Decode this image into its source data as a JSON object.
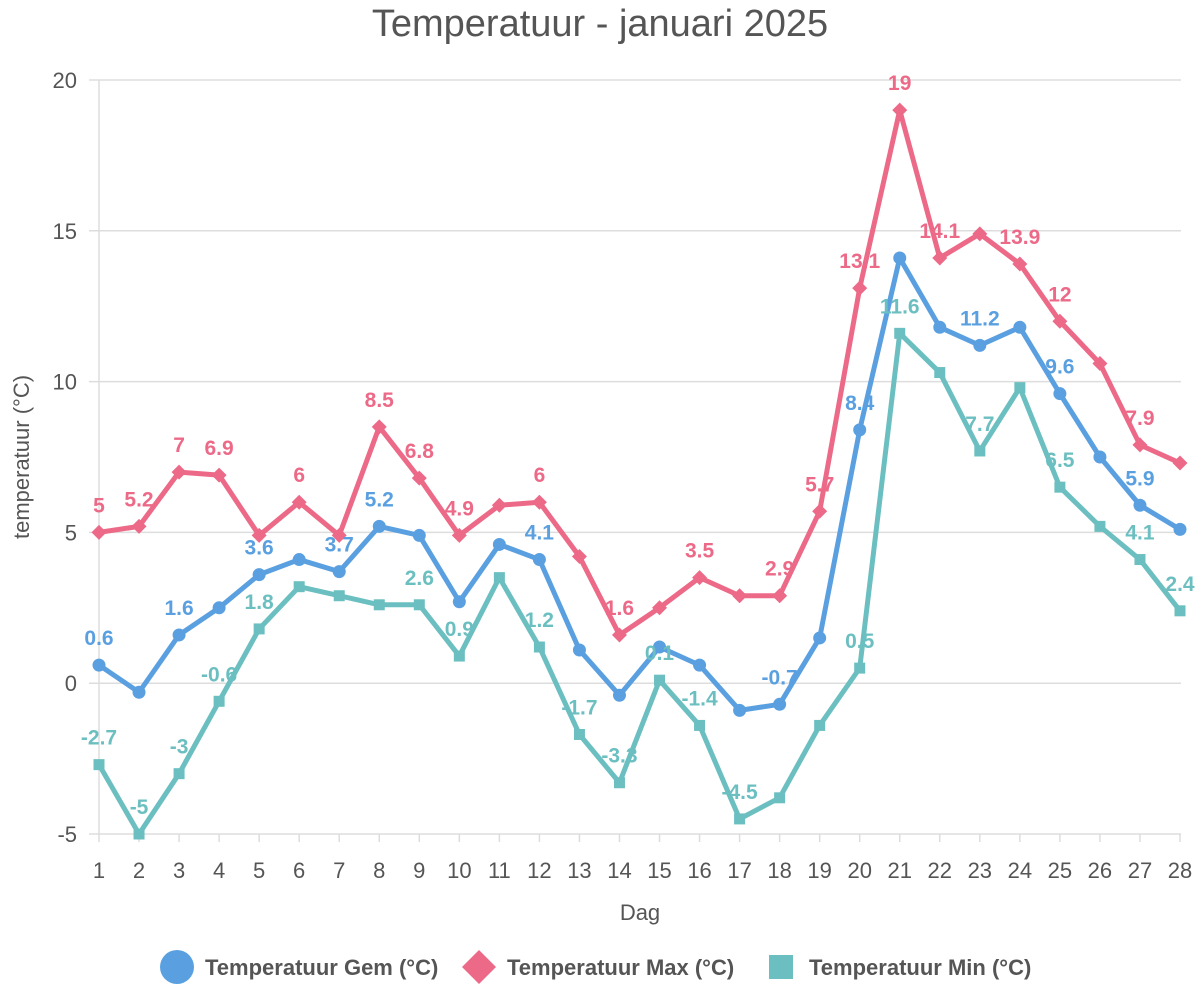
{
  "chart_data": {
    "type": "line",
    "title": "Temperatuur - januari 2025",
    "xlabel": "Dag",
    "ylabel": "temperatuur (°C)",
    "ylim": [
      -5,
      20
    ],
    "yticks": [
      -5,
      0,
      5,
      10,
      15,
      20
    ],
    "categories": [
      "1",
      "2",
      "3",
      "4",
      "5",
      "6",
      "7",
      "8",
      "9",
      "10",
      "11",
      "12",
      "13",
      "14",
      "15",
      "16",
      "17",
      "18",
      "19",
      "20",
      "21",
      "22",
      "23",
      "24",
      "25",
      "26",
      "27",
      "28"
    ],
    "grid": true,
    "legend_position": "bottom",
    "series": [
      {
        "name": "Temperatuur Gem (°C)",
        "color": "#5aa0e0",
        "marker": "circle",
        "values": [
          0.6,
          -0.3,
          1.6,
          2.5,
          3.6,
          4.1,
          3.7,
          5.2,
          4.9,
          2.7,
          4.6,
          4.1,
          1.1,
          -0.4,
          1.2,
          0.6,
          -0.9,
          -0.7,
          1.5,
          8.4,
          14.1,
          11.8,
          11.2,
          11.8,
          9.6,
          7.5,
          5.9,
          5.1
        ],
        "labels": [
          "0.6",
          "",
          "1.6",
          "",
          "3.6",
          "",
          "3.7",
          "5.2",
          "",
          "",
          "",
          "4.1",
          "",
          "",
          "",
          "",
          "",
          "-0.7",
          "",
          "8.4",
          "",
          "",
          "11.2",
          "",
          "9.6",
          "",
          "5.9",
          ""
        ]
      },
      {
        "name": "Temperatuur Max (°C)",
        "color": "#ec6a88",
        "marker": "diamond",
        "values": [
          5.0,
          5.2,
          7.0,
          6.9,
          4.9,
          6.0,
          4.9,
          8.5,
          6.8,
          4.9,
          5.9,
          6.0,
          4.2,
          1.6,
          2.5,
          3.5,
          2.9,
          2.9,
          5.7,
          13.1,
          19.0,
          14.1,
          14.9,
          13.9,
          12.0,
          10.6,
          7.9,
          7.3
        ],
        "labels": [
          "5",
          "5.2",
          "7",
          "6.9",
          "",
          "6",
          "",
          "8.5",
          "6.8",
          "4.9",
          "",
          "6",
          "",
          "1.6",
          "",
          "3.5",
          "",
          "2.9",
          "5.7",
          "13.1",
          "19",
          "14.1",
          "",
          "13.9",
          "12",
          "",
          "7.9",
          ""
        ]
      },
      {
        "name": "Temperatuur Min (°C)",
        "color": "#6cbfc0",
        "marker": "square",
        "values": [
          -2.7,
          -5.0,
          -3.0,
          -0.6,
          1.8,
          3.2,
          2.9,
          2.6,
          2.6,
          0.9,
          3.5,
          1.2,
          -1.7,
          -3.3,
          0.1,
          -1.4,
          -4.5,
          -3.8,
          -1.4,
          0.5,
          11.6,
          10.3,
          7.7,
          9.8,
          6.5,
          5.2,
          4.1,
          2.4
        ],
        "labels": [
          "-2.7",
          "-5",
          "-3",
          "-0.6",
          "1.8",
          "",
          "",
          "",
          "2.6",
          "0.9",
          "",
          "1.2",
          "-1.7",
          "-3.3",
          "0.1",
          "-1.4",
          "-4.5",
          "",
          "",
          "0.5",
          "11.6",
          "",
          "7.7",
          "",
          "6.5",
          "",
          "4.1",
          "2.4"
        ]
      }
    ]
  }
}
